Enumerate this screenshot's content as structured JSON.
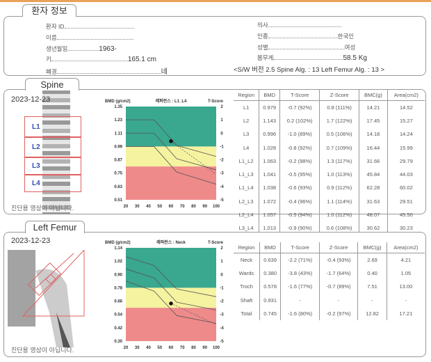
{
  "patient_info": {
    "tab": "환자 정보",
    "left": [
      {
        "label": "환자 ID",
        "value": ""
      },
      {
        "label": "이름",
        "value": ""
      },
      {
        "label": "생년월일",
        "value": "1963-"
      },
      {
        "label": "키",
        "value": "165.1 cm"
      },
      {
        "label": "폐경",
        "value": "네"
      }
    ],
    "right": [
      {
        "label": "의사",
        "value": ""
      },
      {
        "label": "인종",
        "value": "한국인"
      },
      {
        "label": "성별",
        "value": "여성"
      },
      {
        "label": "몸무게",
        "value": "58.5 Kg"
      }
    ],
    "version_line": "<S/W 버전 2.5    Spine Alg. : 13    Left Femur Alg. : 13    >"
  },
  "spine": {
    "tab": "Spine",
    "date": "2023-12-23",
    "vertebrae": [
      "L1",
      "L2",
      "L3",
      "L4"
    ],
    "note": "진단용 영상이 아닙니다.",
    "table": {
      "headers": [
        "Region",
        "BMD",
        "T-Score",
        "Z-Score",
        "BMC(g)",
        "Area(cm2)"
      ],
      "rows": [
        [
          "L1",
          "0.979",
          "-0.7 (92%)",
          "0.8 (111%)",
          "14.21",
          "14.52"
        ],
        [
          "L2",
          "1.143",
          "0.2 (102%)",
          "1.7 (122%)",
          "17.45",
          "15.27"
        ],
        [
          "L3",
          "0.996",
          "-1.0 (89%)",
          "0.5 (106%)",
          "14.18",
          "14.24"
        ],
        [
          "L4",
          "1.028",
          "-0.8 (92%)",
          "0.7 (109%)",
          "16.44",
          "15.99"
        ],
        [
          "L1_L2",
          "1.063",
          "-0.2 (98%)",
          "1.3 (117%)",
          "31.66",
          "29.79"
        ],
        [
          "L1_L3",
          "1.041",
          "-0.5 (95%)",
          "1.0 (113%)",
          "45.84",
          "44.03"
        ],
        [
          "L1_L4",
          "1.038",
          "-0.6 (93%)",
          "0.9 (112%)",
          "62.28",
          "60.02"
        ],
        [
          "L2_L3",
          "1.072",
          "-0.4 (96%)",
          "1.1 (114%)",
          "31.63",
          "29.51"
        ],
        [
          "L2_L4",
          "1.057",
          "-0.5 (94%)",
          "1.0 (112%)",
          "48.07",
          "45.50"
        ],
        [
          "L3_L4",
          "1.013",
          "-0.9 (90%)",
          "0.6 (108%)",
          "30.62",
          "30.23"
        ]
      ]
    }
  },
  "femur": {
    "tab": "Left Femur",
    "date": "2023-12-23",
    "note": "진단용 영상이 아닙니다.",
    "table": {
      "headers": [
        "Region",
        "BMD",
        "T-Score",
        "Z-Score",
        "BMC(g)",
        "Area(cm2)"
      ],
      "rows": [
        [
          "Neck",
          "0.639",
          "-2.2 (71%)",
          "-0.4 (93%)",
          "2.69",
          "4.21"
        ],
        [
          "Wards",
          "0.380",
          "-3.8 (43%)",
          "-1.7 (64%)",
          "0.40",
          "1.05"
        ],
        [
          "Troch",
          "0.578",
          "-1.6 (77%)",
          "-0.7 (89%)",
          "7.51",
          "13.00"
        ],
        [
          "Shaft",
          "0.931",
          "-",
          "-",
          "-",
          "-"
        ],
        [
          "Total",
          "0.745",
          "-1.6 (80%)",
          "-0.2 (97%)",
          "12.82",
          "17.21"
        ]
      ]
    }
  },
  "chart_data": [
    {
      "type": "line",
      "title": "레퍼런스 : L1_L4",
      "ylabel": "BMD (g/cm2)",
      "y2label": "T-Score",
      "xlim": [
        20,
        100
      ],
      "ylim": [
        0.51,
        1.35
      ],
      "xticks": [
        "20",
        "30",
        "40",
        "50",
        "60",
        "70",
        "80",
        "90",
        "100"
      ],
      "yticks": [
        "1.35",
        "1.23",
        "1.11",
        "0.99",
        "0.87",
        "0.75",
        "0.63",
        "0.51"
      ],
      "y2ticks": [
        "2",
        "1",
        "0",
        "-1",
        "-2",
        "-3",
        "-4",
        "-5"
      ],
      "zones": [
        {
          "from": 0.99,
          "to": 1.35,
          "color": "#3aa78f"
        },
        {
          "from": 0.81,
          "to": 0.99,
          "color": "#f5f2a0"
        },
        {
          "from": 0.51,
          "to": 0.81,
          "color": "#ee8a8a"
        }
      ],
      "series": [
        {
          "name": "upper",
          "x": [
            20,
            45,
            65,
            100
          ],
          "y": [
            1.23,
            1.23,
            1.0,
            0.9
          ]
        },
        {
          "name": "mean",
          "x": [
            20,
            45,
            65,
            100
          ],
          "y": [
            1.11,
            1.11,
            0.88,
            0.78
          ]
        },
        {
          "name": "lower",
          "x": [
            20,
            45,
            65,
            100
          ],
          "y": [
            0.99,
            0.99,
            0.76,
            0.65
          ]
        }
      ],
      "projection": {
        "x": [
          60,
          100
        ],
        "y": [
          1.038,
          0.74
        ]
      },
      "patient": {
        "age": 60,
        "bmd": 1.038
      }
    },
    {
      "type": "line",
      "title": "레퍼런스 : Neck",
      "ylabel": "BMD (g/cm2)",
      "y2label": "T-Score",
      "xlim": [
        20,
        100
      ],
      "ylim": [
        0.3,
        1.14
      ],
      "xticks": [
        "20",
        "30",
        "40",
        "50",
        "60",
        "70",
        "80",
        "90",
        "100"
      ],
      "yticks": [
        "1.14",
        "1.02",
        "0.90",
        "0.78",
        "0.66",
        "0.54",
        "0.42",
        "0.30"
      ],
      "y2ticks": [
        "2",
        "1",
        "0",
        "-1",
        "-2",
        "-3",
        "-4",
        "-5"
      ],
      "zones": [
        {
          "from": 0.78,
          "to": 1.14,
          "color": "#3aa78f"
        },
        {
          "from": 0.6,
          "to": 0.78,
          "color": "#f5f2a0"
        },
        {
          "from": 0.3,
          "to": 0.6,
          "color": "#ee8a8a"
        }
      ],
      "series": [
        {
          "name": "upper",
          "x": [
            20,
            45,
            65,
            100
          ],
          "y": [
            1.06,
            0.98,
            0.77,
            0.7
          ]
        },
        {
          "name": "mean",
          "x": [
            20,
            45,
            65,
            100
          ],
          "y": [
            0.95,
            0.87,
            0.65,
            0.58
          ]
        },
        {
          "name": "lower",
          "x": [
            20,
            45,
            65,
            100
          ],
          "y": [
            0.84,
            0.75,
            0.53,
            0.46
          ]
        }
      ],
      "projection": {
        "x": [
          60,
          100
        ],
        "y": [
          0.639,
          0.45
        ]
      },
      "patient": {
        "age": 60,
        "bmd": 0.639
      }
    }
  ]
}
